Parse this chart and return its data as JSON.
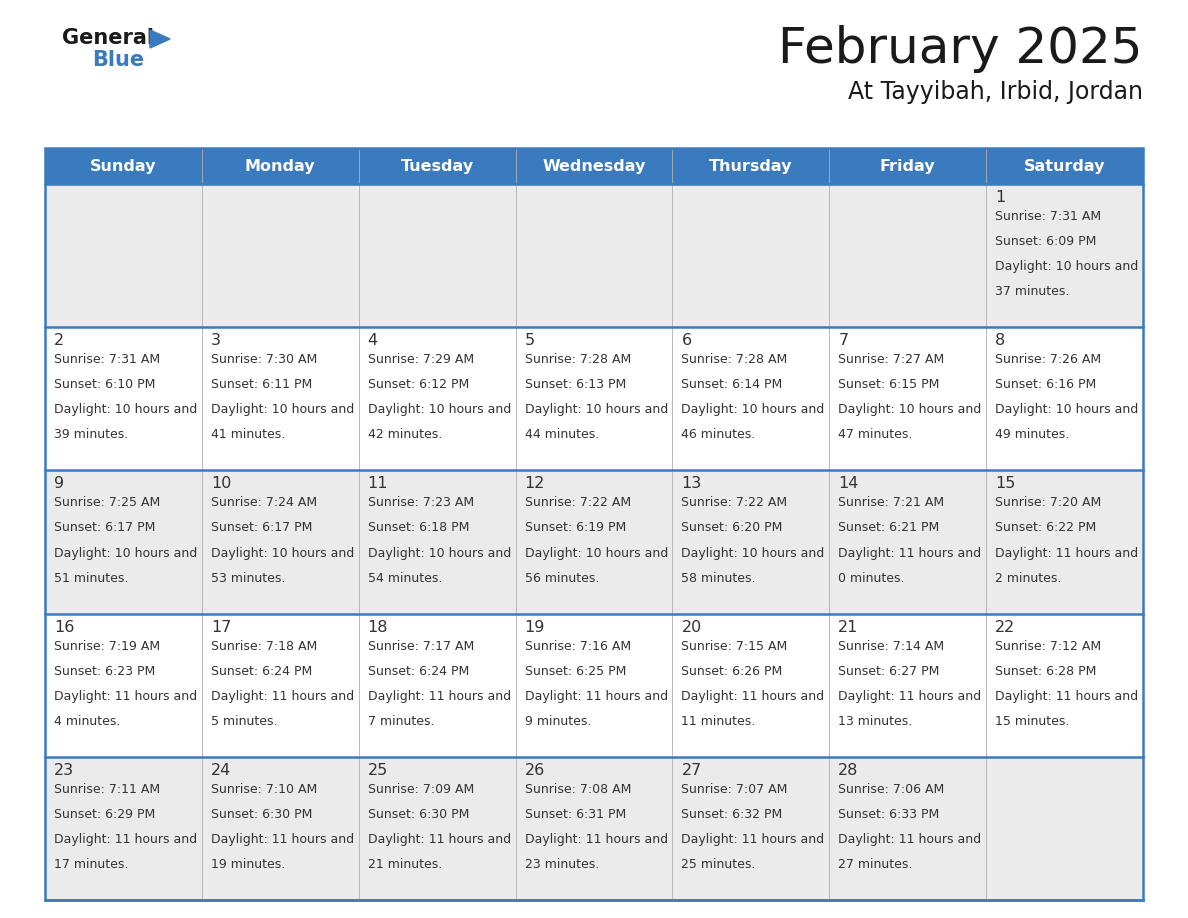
{
  "title": "February 2025",
  "subtitle": "At Tayyibah, Irbid, Jordan",
  "header_bg": "#3a7abf",
  "header_text": "#ffffff",
  "day_names": [
    "Sunday",
    "Monday",
    "Tuesday",
    "Wednesday",
    "Thursday",
    "Friday",
    "Saturday"
  ],
  "bg_color": "#ffffff",
  "cell_bg_light": "#ebebeb",
  "cell_bg_white": "#ffffff",
  "separator_color": "#3a7abf",
  "row_sep_color": "#3a7abf",
  "date_color": "#333333",
  "text_color": "#333333",
  "calendar": [
    [
      null,
      null,
      null,
      null,
      null,
      null,
      {
        "day": 1,
        "sunrise": "7:31 AM",
        "sunset": "6:09 PM",
        "daylight": "10 hours and 37 minutes."
      }
    ],
    [
      {
        "day": 2,
        "sunrise": "7:31 AM",
        "sunset": "6:10 PM",
        "daylight": "10 hours and 39 minutes."
      },
      {
        "day": 3,
        "sunrise": "7:30 AM",
        "sunset": "6:11 PM",
        "daylight": "10 hours and 41 minutes."
      },
      {
        "day": 4,
        "sunrise": "7:29 AM",
        "sunset": "6:12 PM",
        "daylight": "10 hours and 42 minutes."
      },
      {
        "day": 5,
        "sunrise": "7:28 AM",
        "sunset": "6:13 PM",
        "daylight": "10 hours and 44 minutes."
      },
      {
        "day": 6,
        "sunrise": "7:28 AM",
        "sunset": "6:14 PM",
        "daylight": "10 hours and 46 minutes."
      },
      {
        "day": 7,
        "sunrise": "7:27 AM",
        "sunset": "6:15 PM",
        "daylight": "10 hours and 47 minutes."
      },
      {
        "day": 8,
        "sunrise": "7:26 AM",
        "sunset": "6:16 PM",
        "daylight": "10 hours and 49 minutes."
      }
    ],
    [
      {
        "day": 9,
        "sunrise": "7:25 AM",
        "sunset": "6:17 PM",
        "daylight": "10 hours and 51 minutes."
      },
      {
        "day": 10,
        "sunrise": "7:24 AM",
        "sunset": "6:17 PM",
        "daylight": "10 hours and 53 minutes."
      },
      {
        "day": 11,
        "sunrise": "7:23 AM",
        "sunset": "6:18 PM",
        "daylight": "10 hours and 54 minutes."
      },
      {
        "day": 12,
        "sunrise": "7:22 AM",
        "sunset": "6:19 PM",
        "daylight": "10 hours and 56 minutes."
      },
      {
        "day": 13,
        "sunrise": "7:22 AM",
        "sunset": "6:20 PM",
        "daylight": "10 hours and 58 minutes."
      },
      {
        "day": 14,
        "sunrise": "7:21 AM",
        "sunset": "6:21 PM",
        "daylight": "11 hours and 0 minutes."
      },
      {
        "day": 15,
        "sunrise": "7:20 AM",
        "sunset": "6:22 PM",
        "daylight": "11 hours and 2 minutes."
      }
    ],
    [
      {
        "day": 16,
        "sunrise": "7:19 AM",
        "sunset": "6:23 PM",
        "daylight": "11 hours and 4 minutes."
      },
      {
        "day": 17,
        "sunrise": "7:18 AM",
        "sunset": "6:24 PM",
        "daylight": "11 hours and 5 minutes."
      },
      {
        "day": 18,
        "sunrise": "7:17 AM",
        "sunset": "6:24 PM",
        "daylight": "11 hours and 7 minutes."
      },
      {
        "day": 19,
        "sunrise": "7:16 AM",
        "sunset": "6:25 PM",
        "daylight": "11 hours and 9 minutes."
      },
      {
        "day": 20,
        "sunrise": "7:15 AM",
        "sunset": "6:26 PM",
        "daylight": "11 hours and 11 minutes."
      },
      {
        "day": 21,
        "sunrise": "7:14 AM",
        "sunset": "6:27 PM",
        "daylight": "11 hours and 13 minutes."
      },
      {
        "day": 22,
        "sunrise": "7:12 AM",
        "sunset": "6:28 PM",
        "daylight": "11 hours and 15 minutes."
      }
    ],
    [
      {
        "day": 23,
        "sunrise": "7:11 AM",
        "sunset": "6:29 PM",
        "daylight": "11 hours and 17 minutes."
      },
      {
        "day": 24,
        "sunrise": "7:10 AM",
        "sunset": "6:30 PM",
        "daylight": "11 hours and 19 minutes."
      },
      {
        "day": 25,
        "sunrise": "7:09 AM",
        "sunset": "6:30 PM",
        "daylight": "11 hours and 21 minutes."
      },
      {
        "day": 26,
        "sunrise": "7:08 AM",
        "sunset": "6:31 PM",
        "daylight": "11 hours and 23 minutes."
      },
      {
        "day": 27,
        "sunrise": "7:07 AM",
        "sunset": "6:32 PM",
        "daylight": "11 hours and 25 minutes."
      },
      {
        "day": 28,
        "sunrise": "7:06 AM",
        "sunset": "6:33 PM",
        "daylight": "11 hours and 27 minutes."
      },
      null
    ]
  ]
}
